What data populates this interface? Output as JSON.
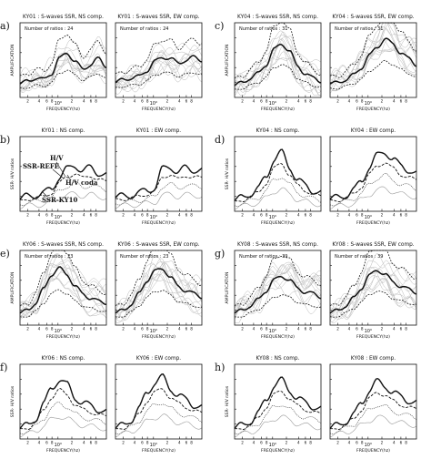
{
  "chart_data": [
    {
      "id": "a",
      "letter": "a)",
      "type": "line",
      "row": 0,
      "col": 0,
      "kind": "ssr",
      "panels": [
        {
          "title": "KY01 : S-waves SSR, NS comp.",
          "ratios": "Number of ratios : 24",
          "ylabel": "AMPLIFICATION",
          "xlabel": "FREQUENCY(hz)",
          "xticks": [
            "2",
            "4",
            "6",
            "8",
            "10⁰",
            "2",
            "4",
            "6",
            "8"
          ],
          "shape": [
            0.9,
            1.1,
            1.3,
            1.2,
            1.6,
            2.6,
            3.0,
            2.4,
            1.9,
            2.2,
            2.6,
            2.1
          ]
        },
        {
          "title": "KY01 : S-waves SSR, EW comp.",
          "ratios": "Number of ratios : 24",
          "xlabel": "FREQUENCY(hz)",
          "xticks": [
            "2",
            "4",
            "6",
            "8",
            "10⁰",
            "2",
            "4",
            "6",
            "8"
          ],
          "shape": [
            1.0,
            1.2,
            1.3,
            1.4,
            1.8,
            2.4,
            2.7,
            2.6,
            2.3,
            2.5,
            2.7,
            2.5
          ]
        }
      ]
    },
    {
      "id": "b",
      "letter": "b)",
      "type": "line",
      "row": 1,
      "col": 0,
      "kind": "hv",
      "annotations": {
        "hv": "H/V",
        "ssr_refe": "SSR-REFE",
        "hv_coda": "H/V coda",
        "ssr_ky10": "SSR-KY10"
      },
      "panels": [
        {
          "title": "KY01 : NS comp.",
          "ylabel": "SSR- H/V ratios",
          "xlabel": "FREQUENCY(hz)",
          "xticks": [
            "2",
            "4",
            "6",
            "8",
            "10⁰",
            "2",
            "4",
            "6",
            "8"
          ],
          "shape": [
            0.8,
            1.0,
            1.1,
            1.2,
            1.5,
            2.3,
            2.8,
            3.1,
            2.7,
            2.9,
            2.6,
            2.4
          ]
        },
        {
          "title": "KY01 : EW comp.",
          "xlabel": "FREQUENCY(hz)",
          "xticks": [
            "2",
            "4",
            "6",
            "8",
            "10⁰",
            "2",
            "4",
            "6",
            "8"
          ],
          "shape": [
            0.9,
            1.0,
            1.1,
            1.2,
            1.4,
            1.6,
            2.8,
            3.0,
            2.6,
            2.9,
            2.8,
            2.7
          ]
        }
      ]
    },
    {
      "id": "c",
      "letter": "c)",
      "type": "line",
      "row": 0,
      "col": 1,
      "kind": "ssr",
      "panels": [
        {
          "title": "KY04 : S-waves SSR, NS comp.",
          "ratios": "Number of ratios : 31",
          "ylabel": "AMPLIFICATION",
          "xlabel": "FREQUENCY(hz)",
          "xticks": [
            "2",
            "4",
            "6",
            "8",
            "10⁰",
            "2",
            "4",
            "6",
            "8"
          ],
          "shape": [
            0.8,
            1.0,
            1.3,
            1.6,
            2.2,
            3.2,
            3.6,
            3.1,
            2.1,
            1.6,
            1.3,
            1.1
          ]
        },
        {
          "title": "KY04 : S-waves SSR, EW comp.",
          "ratios": "Number of ratios : 31",
          "xlabel": "FREQUENCY(hz)",
          "xticks": [
            "2",
            "4",
            "6",
            "8",
            "10⁰",
            "2",
            "4",
            "6",
            "8"
          ],
          "shape": [
            0.9,
            1.0,
            1.2,
            1.5,
            2.0,
            2.8,
            3.4,
            3.9,
            3.6,
            3.0,
            2.6,
            2.2
          ]
        }
      ]
    },
    {
      "id": "d",
      "letter": "d)",
      "type": "line",
      "row": 1,
      "col": 1,
      "kind": "hv",
      "panels": [
        {
          "title": "KY04 : NS comp.",
          "ylabel": "SSR- H/V ratios",
          "xlabel": "FREQUENCY(hz)",
          "xticks": [
            "2",
            "4",
            "6",
            "8",
            "10⁰",
            "2",
            "4",
            "6",
            "8"
          ],
          "shape": [
            0.7,
            0.9,
            1.2,
            1.5,
            2.3,
            3.5,
            3.9,
            3.0,
            2.1,
            1.7,
            1.4,
            1.2
          ]
        },
        {
          "title": "KY04 : EW comp.",
          "xlabel": "FREQUENCY(hz)",
          "xticks": [
            "2",
            "4",
            "6",
            "8",
            "10⁰",
            "2",
            "4",
            "6",
            "8"
          ],
          "shape": [
            0.8,
            0.9,
            1.1,
            1.4,
            2.0,
            3.0,
            3.7,
            4.0,
            3.5,
            3.0,
            2.8,
            2.5
          ]
        }
      ]
    },
    {
      "id": "e",
      "letter": "e)",
      "type": "line",
      "row": 2,
      "col": 0,
      "kind": "ssr",
      "panels": [
        {
          "title": "KY06 : S-waves SSR, NS comp.",
          "ratios": "Number of ratios : 23",
          "ylabel": "AMPLIFICATION",
          "xlabel": "FREQUENCY(hz)",
          "xticks": [
            "2",
            "4",
            "6",
            "8",
            "10⁰",
            "2",
            "4",
            "6",
            "8"
          ],
          "shape": [
            0.8,
            1.0,
            1.5,
            2.4,
            3.4,
            3.8,
            3.4,
            2.6,
            2.1,
            1.8,
            1.6,
            1.5
          ]
        },
        {
          "title": "KY06 : S-waves SSR, EW comp.",
          "ratios": "Number of ratios : 23",
          "xlabel": "FREQUENCY(hz)",
          "xticks": [
            "2",
            "4",
            "6",
            "8",
            "10⁰",
            "2",
            "4",
            "6",
            "8"
          ],
          "shape": [
            0.8,
            1.0,
            1.4,
            2.1,
            3.0,
            3.6,
            3.8,
            3.2,
            2.6,
            2.3,
            2.1,
            1.9
          ]
        }
      ]
    },
    {
      "id": "f",
      "letter": "f)",
      "type": "line",
      "row": 3,
      "col": 0,
      "kind": "hv",
      "panels": [
        {
          "title": "KY06 : NS comp.",
          "ylabel": "SSR- H/V ratios",
          "xlabel": "FREQUENCY(hz)",
          "xticks": [
            "2",
            "4",
            "6",
            "8",
            "10⁰",
            "2",
            "4",
            "6",
            "8"
          ],
          "shape": [
            0.7,
            0.9,
            1.4,
            2.3,
            3.4,
            4.0,
            3.6,
            2.8,
            2.4,
            2.2,
            2.0,
            1.8
          ]
        },
        {
          "title": "KY06 : EW comp.",
          "xlabel": "FREQUENCY(hz)",
          "xticks": [
            "2",
            "4",
            "6",
            "8",
            "10⁰",
            "2",
            "4",
            "6",
            "8"
          ],
          "shape": [
            0.7,
            0.9,
            1.3,
            2.0,
            3.1,
            3.8,
            4.1,
            3.4,
            2.9,
            2.6,
            2.3,
            2.1
          ]
        }
      ]
    },
    {
      "id": "g",
      "letter": "g)",
      "type": "line",
      "row": 2,
      "col": 1,
      "kind": "ssr",
      "panels": [
        {
          "title": "KY08 : S-waves SSR, NS comp.",
          "ratios": "Number of ratios : 39",
          "ylabel": "AMPLIFICATION",
          "xlabel": "FREQUENCY(hz)",
          "xticks": [
            "2",
            "4",
            "6",
            "8",
            "10⁰",
            "2",
            "4",
            "6",
            "8"
          ],
          "shape": [
            0.8,
            1.0,
            1.3,
            1.7,
            2.3,
            3.0,
            3.3,
            3.0,
            2.5,
            2.2,
            2.1,
            1.9
          ]
        },
        {
          "title": "KY08 : S-waves SSR, EW comp.",
          "ratios": "Number of ratios : 39",
          "xlabel": "FREQUENCY(hz)",
          "xticks": [
            "2",
            "4",
            "6",
            "8",
            "10⁰",
            "2",
            "4",
            "6",
            "8"
          ],
          "shape": [
            0.8,
            1.0,
            1.3,
            1.8,
            2.5,
            3.3,
            3.7,
            3.4,
            2.9,
            2.6,
            2.4,
            2.2
          ]
        }
      ]
    },
    {
      "id": "h",
      "letter": "h)",
      "type": "line",
      "row": 3,
      "col": 1,
      "kind": "hv",
      "panels": [
        {
          "title": "KY08 : NS comp.",
          "ylabel": "SSR- H/V ratios",
          "xlabel": "FREQUENCY(hz)",
          "xticks": [
            "2",
            "4",
            "6",
            "8",
            "10⁰",
            "2",
            "4",
            "6",
            "8"
          ],
          "shape": [
            0.7,
            0.9,
            1.2,
            1.7,
            2.6,
            3.6,
            3.9,
            3.3,
            2.7,
            2.4,
            2.2,
            2.0
          ]
        },
        {
          "title": "KY08 : EW comp.",
          "xlabel": "FREQUENCY(hz)",
          "xticks": [
            "2",
            "4",
            "6",
            "8",
            "10⁰",
            "2",
            "4",
            "6",
            "8"
          ],
          "shape": [
            0.7,
            0.9,
            1.2,
            1.6,
            2.4,
            3.3,
            3.8,
            3.6,
            3.1,
            2.8,
            2.6,
            2.4
          ]
        }
      ]
    }
  ]
}
